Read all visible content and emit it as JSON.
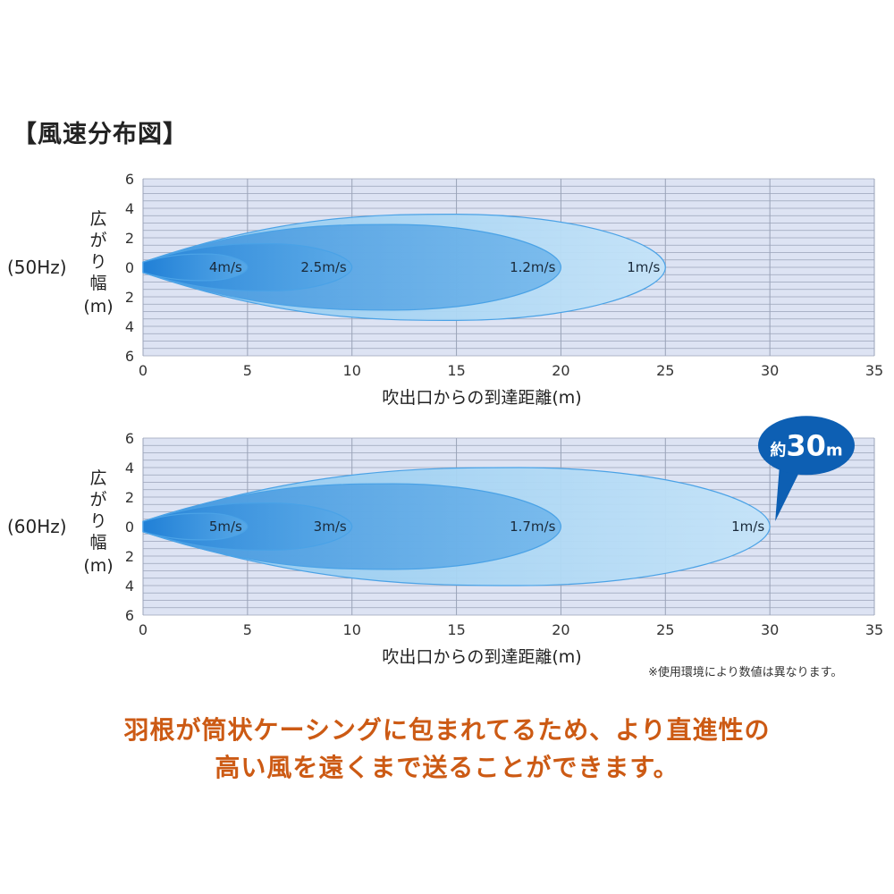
{
  "title": "【風速分布図】",
  "note": "※使用環境により数値は異なります。",
  "message": {
    "line1": "羽根が筒状ケーシングに包まれてるため、より直進性の",
    "line2": "高い風を遠くまで送ることができます。"
  },
  "colors": {
    "grid_bg": "#dde3f3",
    "grid_line": "#9aa3b8",
    "plume_outer": "#a6d4f2",
    "plume_inner": "#2f8fe0",
    "callout": "#0d5fb3",
    "message": "#cc5a14"
  },
  "chart_data": [
    {
      "type": "area",
      "label": "(50Hz)",
      "xlabel": "吹出口からの到達距離(m)",
      "ylabel": "広がり幅(m)",
      "xlim": [
        0,
        35
      ],
      "ylim": [
        -6,
        6
      ],
      "x_ticks": [
        "0",
        "5",
        "10",
        "15",
        "20",
        "25",
        "30",
        "35"
      ],
      "y_ticks": [
        "6",
        "4",
        "2",
        "0",
        "2",
        "4",
        "6"
      ],
      "grid": true,
      "series": [
        {
          "name": "1m/s",
          "reach": 25,
          "half_width": 3.6
        },
        {
          "name": "1.2m/s",
          "reach": 20,
          "half_width": 2.9
        },
        {
          "name": "2.5m/s",
          "reach": 10,
          "half_width": 1.6
        },
        {
          "name": "4m/s",
          "reach": 5,
          "half_width": 0.9
        }
      ]
    },
    {
      "type": "area",
      "label": "(60Hz)",
      "xlabel": "吹出口からの到達距離(m)",
      "ylabel": "広がり幅(m)",
      "xlim": [
        0,
        35
      ],
      "ylim": [
        -6,
        6
      ],
      "x_ticks": [
        "0",
        "5",
        "10",
        "15",
        "20",
        "25",
        "30",
        "35"
      ],
      "y_ticks": [
        "6",
        "4",
        "2",
        "0",
        "2",
        "4",
        "6"
      ],
      "grid": true,
      "callout": {
        "prefix": "約",
        "value": "30",
        "unit": "m"
      },
      "series": [
        {
          "name": "1m/s",
          "reach": 30,
          "half_width": 4.0
        },
        {
          "name": "1.7m/s",
          "reach": 20,
          "half_width": 2.9
        },
        {
          "name": "3m/s",
          "reach": 10,
          "half_width": 1.6
        },
        {
          "name": "5m/s",
          "reach": 5,
          "half_width": 0.9
        }
      ]
    }
  ]
}
